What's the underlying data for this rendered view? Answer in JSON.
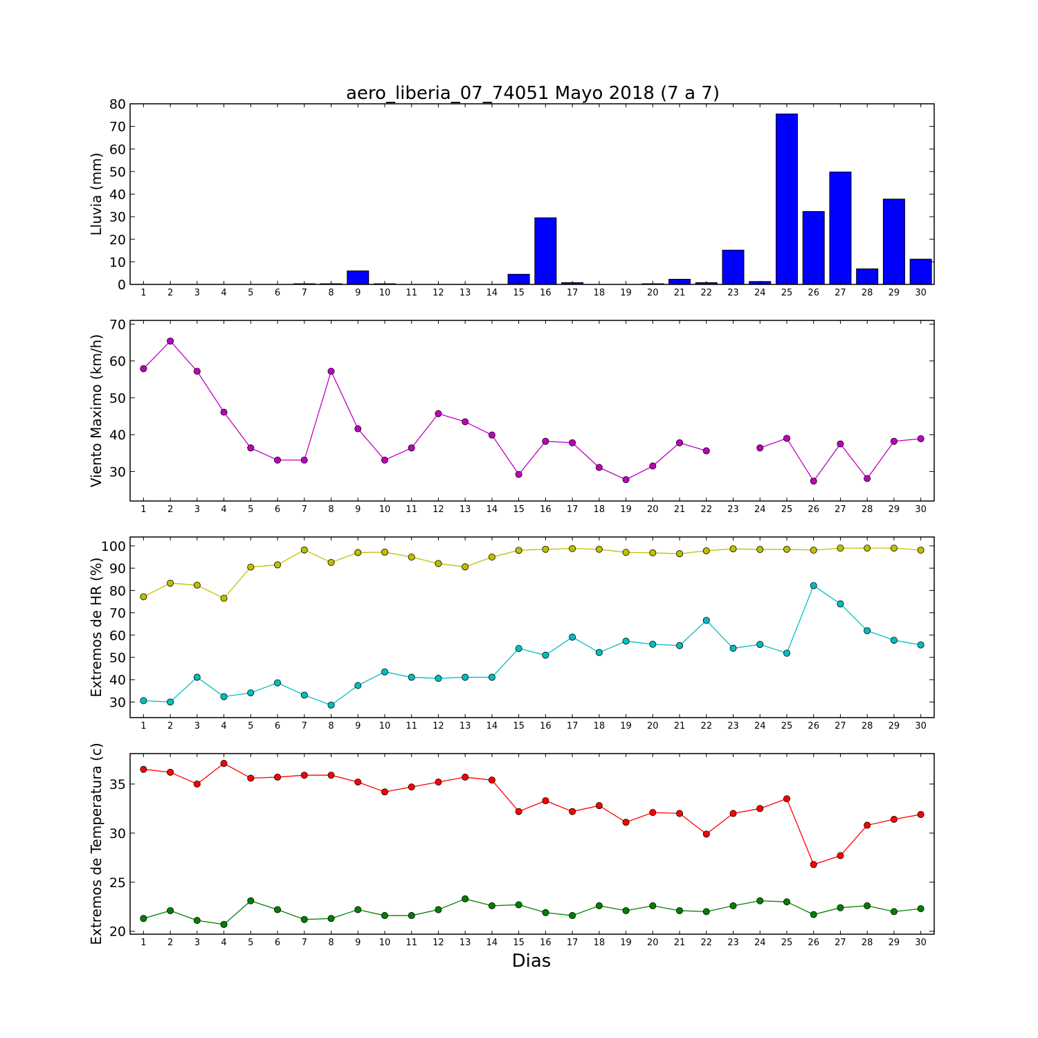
{
  "figure": {
    "title": "aero_liberia_07_74051 Mayo 2018  (7 a 7)",
    "xlabel": "Dias"
  },
  "chart_data": [
    {
      "type": "bar",
      "ylabel": "Lluvia (mm)",
      "ylim": [
        0,
        80
      ],
      "yticks": [
        0,
        10,
        20,
        30,
        40,
        50,
        60,
        70,
        80
      ],
      "x": [
        1,
        2,
        3,
        4,
        5,
        6,
        7,
        8,
        9,
        10,
        11,
        12,
        13,
        14,
        15,
        16,
        17,
        18,
        19,
        20,
        21,
        22,
        23,
        24,
        25,
        26,
        27,
        28,
        29,
        30
      ],
      "series": [
        {
          "color": "#0000ff",
          "values": [
            0,
            0,
            0,
            0,
            0,
            0,
            0.3,
            0.3,
            6,
            0.3,
            0,
            0,
            0,
            0,
            4.5,
            29.5,
            0.8,
            0,
            0,
            0.3,
            2.3,
            0.8,
            15.2,
            1.3,
            75.5,
            32.3,
            49.8,
            6.9,
            37.8,
            11.2
          ]
        }
      ],
      "grid": false
    },
    {
      "type": "line",
      "ylabel": "Viento Maximo (km/h)",
      "ylim": [
        22,
        71
      ],
      "yticks": [
        30,
        40,
        50,
        60,
        70
      ],
      "x": [
        1,
        2,
        3,
        4,
        5,
        6,
        7,
        8,
        9,
        10,
        11,
        12,
        13,
        14,
        15,
        16,
        17,
        18,
        19,
        20,
        21,
        22,
        23,
        24,
        25,
        26,
        27,
        28,
        29,
        30
      ],
      "series": [
        {
          "color": "#bf00bf",
          "values": [
            57.9,
            65.4,
            57.2,
            46.1,
            36.4,
            33.1,
            33.1,
            57.2,
            41.6,
            33.1,
            36.4,
            45.7,
            43.5,
            39.9,
            29.2,
            38.2,
            37.8,
            31.1,
            27.8,
            31.5,
            37.8,
            35.6,
            null,
            36.4,
            39,
            27.4,
            37.5,
            28.1,
            38.2,
            38.9
          ]
        }
      ],
      "grid": false
    },
    {
      "type": "line",
      "ylabel": "Extremos de HR (%)",
      "ylim": [
        23,
        104
      ],
      "yticks": [
        30,
        40,
        50,
        60,
        70,
        80,
        90,
        100
      ],
      "x": [
        1,
        2,
        3,
        4,
        5,
        6,
        7,
        8,
        9,
        10,
        11,
        12,
        13,
        14,
        15,
        16,
        17,
        18,
        19,
        20,
        21,
        22,
        23,
        24,
        25,
        26,
        27,
        28,
        29,
        30
      ],
      "series": [
        {
          "color": "#bfbf00",
          "values": [
            77.2,
            83.3,
            82.4,
            76.5,
            90.5,
            91.5,
            98.2,
            92.6,
            97,
            97.2,
            95,
            92.1,
            90.6,
            95,
            98,
            98.5,
            98.8,
            98.5,
            97.1,
            96.9,
            96.5,
            97.8,
            98.7,
            98.4,
            98.5,
            98.1,
            99,
            99,
            99,
            98.1
          ]
        },
        {
          "color": "#00bfbf",
          "values": [
            30.6,
            30,
            41.1,
            32.4,
            34.1,
            38.6,
            33.1,
            28.6,
            37.4,
            43.5,
            41.1,
            40.6,
            41.1,
            41.1,
            54,
            51,
            59.1,
            52.2,
            57.3,
            55.9,
            55.3,
            66.6,
            54.1,
            55.8,
            51.9,
            82.2,
            74,
            62,
            57.7,
            55.6
          ]
        }
      ],
      "grid": false
    },
    {
      "type": "line",
      "ylabel": "Extremos de Temperatura (c)",
      "ylim": [
        19.7,
        38.1
      ],
      "yticks": [
        20,
        25,
        30,
        35
      ],
      "x": [
        1,
        2,
        3,
        4,
        5,
        6,
        7,
        8,
        9,
        10,
        11,
        12,
        13,
        14,
        15,
        16,
        17,
        18,
        19,
        20,
        21,
        22,
        23,
        24,
        25,
        26,
        27,
        28,
        29,
        30
      ],
      "series": [
        {
          "color": "#ff0000",
          "values": [
            36.5,
            36.2,
            35,
            37.1,
            35.6,
            35.7,
            35.9,
            35.9,
            35.2,
            34.2,
            34.7,
            35.2,
            35.7,
            35.4,
            32.2,
            33.3,
            32.2,
            32.8,
            31.1,
            32.1,
            32,
            29.9,
            32,
            32.5,
            33.5,
            26.8,
            27.7,
            30.8,
            31.4,
            31.9
          ]
        },
        {
          "color": "#008000",
          "values": [
            21.3,
            22.1,
            21.1,
            20.7,
            23.1,
            22.2,
            21.2,
            21.3,
            22.2,
            21.6,
            21.6,
            22.2,
            23.3,
            22.6,
            22.7,
            21.9,
            21.6,
            22.6,
            22.1,
            22.6,
            22.1,
            22,
            22.6,
            23.1,
            23,
            21.7,
            22.4,
            22.6,
            22,
            22.3
          ]
        }
      ],
      "grid": false
    }
  ]
}
